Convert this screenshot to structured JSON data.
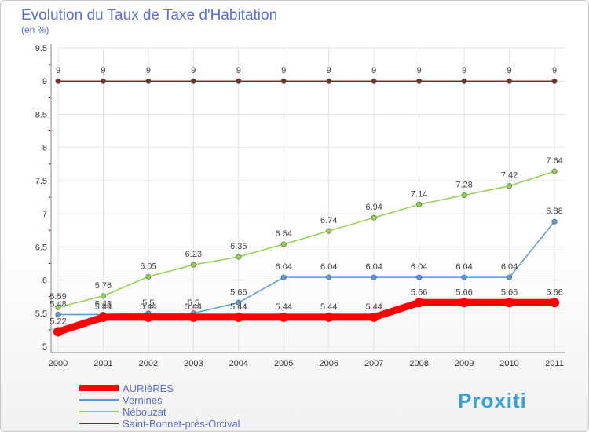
{
  "chart_data": {
    "type": "line",
    "title": "Evolution du Taux de Taxe d'Habitation",
    "subtitle": "(en %)",
    "x": [
      "2000",
      "2001",
      "2002",
      "2003",
      "2004",
      "2005",
      "2006",
      "2007",
      "2008",
      "2009",
      "2010",
      "2011"
    ],
    "y_ticks": [
      "5",
      "5.5",
      "6",
      "6.5",
      "7",
      "7.5",
      "8",
      "8.5",
      "9",
      "9.5"
    ],
    "ylim": [
      5,
      9.5
    ],
    "grid": true,
    "legend_position": "bottom-left",
    "series": [
      {
        "name": "AURIèRES",
        "color": "#ff0000",
        "values": [
          5.22,
          5.44,
          5.44,
          5.44,
          5.44,
          5.44,
          5.44,
          5.44,
          5.66,
          5.66,
          5.66,
          5.66
        ],
        "labels": [
          "5.22",
          "5.44",
          "5.44",
          "5.44",
          "5.44",
          "5.44",
          "5.44",
          "5.44",
          "5.66",
          "5.66",
          "5.66",
          "5.66"
        ]
      },
      {
        "name": "Vernines",
        "color": "#5b9bd5",
        "values": [
          5.48,
          5.48,
          5.5,
          5.5,
          5.66,
          6.04,
          6.04,
          6.04,
          6.04,
          6.04,
          6.04,
          6.88
        ],
        "labels": [
          "5.48",
          "5.48",
          "5.5",
          "5.5",
          "5.66",
          "6.04",
          "6.04",
          "6.04",
          "6.04",
          "6.04",
          "6.04",
          "6.88"
        ]
      },
      {
        "name": "Nébouzat",
        "color": "#8fd14f",
        "values": [
          5.59,
          5.76,
          6.05,
          6.23,
          6.35,
          6.54,
          6.74,
          6.94,
          7.14,
          7.28,
          7.42,
          7.64
        ],
        "labels": [
          "5.59",
          "5.76",
          "6.05",
          "6.23",
          "6.35",
          "6.54",
          "6.74",
          "6.94",
          "7.14",
          "7.28",
          "7.42",
          "7.64"
        ]
      },
      {
        "name": "Saint-Bonnet-près-Orcival",
        "color": "#7b2c2c",
        "values": [
          9,
          9,
          9,
          9,
          9,
          9,
          9,
          9,
          9,
          9,
          9,
          9
        ],
        "labels": [
          "9",
          "9",
          "9",
          "9",
          "9",
          "9",
          "9",
          "9",
          "9",
          "9",
          "9",
          "9"
        ]
      }
    ]
  },
  "brand": {
    "text": "Proxiti"
  }
}
